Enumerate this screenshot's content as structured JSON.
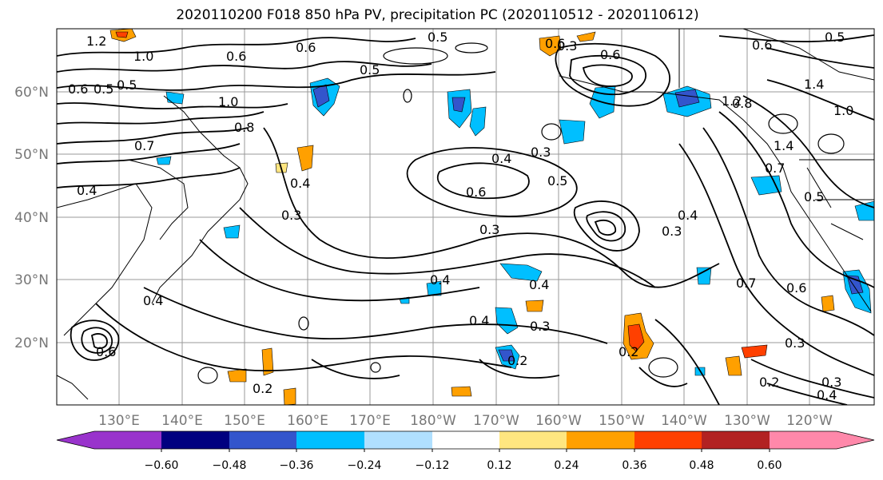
{
  "title": "2020110200 F018 850 hPa PV, precipitation PC (2020110512 - 2020110612)",
  "lat_labels": [
    "60°N",
    "50°N",
    "40°N",
    "30°N",
    "20°N"
  ],
  "lon_labels": [
    "130°E",
    "140°E",
    "150°E",
    "160°E",
    "170°E",
    "180°W",
    "170°W",
    "160°W",
    "150°W",
    "140°W",
    "130°W",
    "120°W"
  ],
  "contour_labels": [
    "1.2",
    "1.0",
    "0.6",
    "0.5",
    "0.8",
    "1.0",
    "0.7",
    "0.6",
    "0.5",
    "0.4",
    "0.3",
    "0.6",
    "0.5",
    "0.3",
    "0.4",
    "0.6",
    "0.6",
    "0.3",
    "0.6",
    "0.3",
    "0.4",
    "0.3",
    "0.4",
    "0.5",
    "0.4",
    "0.4",
    "0.3",
    "0.2",
    "0.2",
    "0.4",
    "0.7",
    "0.6",
    "0.5",
    "0.8",
    "1.0",
    "1.4",
    "0.6",
    "0.5",
    "1.2",
    "1.4",
    "0.7",
    "0.4",
    "0.5",
    "0.3",
    "0.4",
    "0.3",
    "0.2",
    "0.2",
    "0.6"
  ],
  "colorbar": {
    "ticks": [
      "−0.60",
      "−0.48",
      "−0.36",
      "−0.24",
      "−0.12",
      "0.12",
      "0.24",
      "0.36",
      "0.48",
      "0.60"
    ],
    "colors": [
      "#9933cc",
      "#000080",
      "#3355cc",
      "#00bfff",
      "#b0e0ff",
      "#ffffff",
      "#ffe680",
      "#ffa000",
      "#ff4000",
      "#b22222",
      "#ff88aa"
    ]
  }
}
